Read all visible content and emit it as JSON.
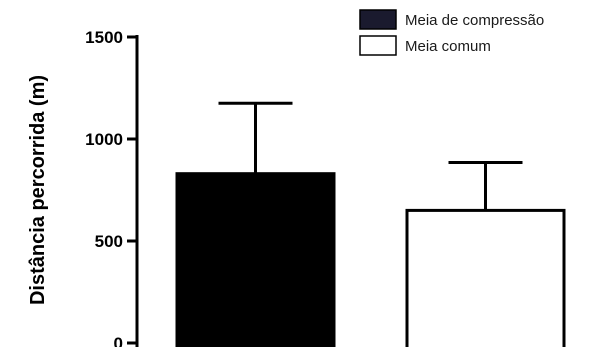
{
  "chart_data": {
    "type": "bar",
    "ylabel": "Distância percorrida (m)",
    "ylim": [
      0,
      1500
    ],
    "yticks": [
      "0",
      "500",
      "1000",
      "1500"
    ],
    "grid": false,
    "legend_position": "top-right",
    "series": [
      {
        "name": "Meia de compressão",
        "value": 830,
        "error": 345,
        "fill": "#000000",
        "legend_fill": "#1a1a2e"
      },
      {
        "name": "Meia comum",
        "value": 650,
        "error": 235,
        "fill": "#ffffff",
        "legend_fill": "#ffffff"
      }
    ]
  }
}
